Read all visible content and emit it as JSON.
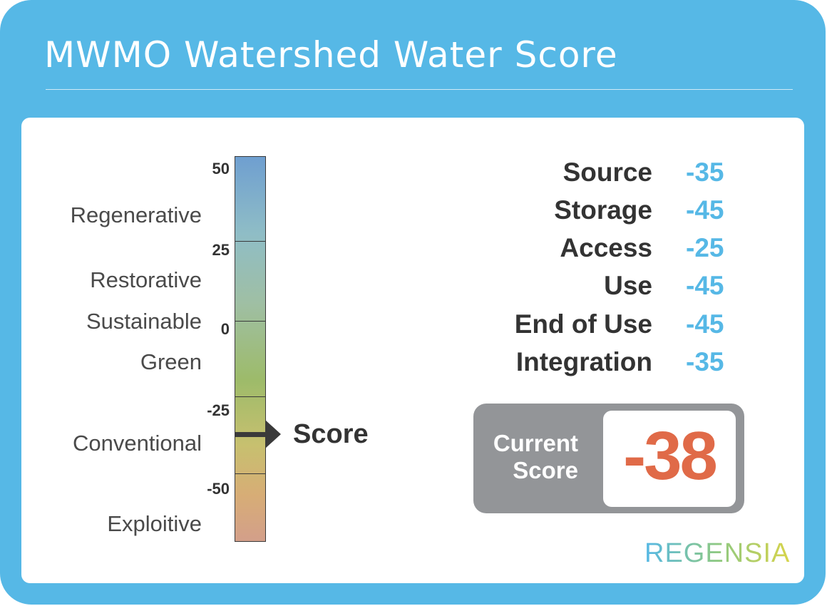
{
  "header": {
    "title": "MWMO Watershed Water Score"
  },
  "scale": {
    "ticks": [
      "50",
      "25",
      "0",
      "-25",
      "-50"
    ],
    "levels": [
      "Regenerative",
      "Restorative",
      "Sustainable",
      "Green",
      "Conventional",
      "Exploitive"
    ],
    "marker_label": "Score",
    "marker_value": -38,
    "range": [
      -72,
      55
    ]
  },
  "metrics": [
    {
      "name": "Source",
      "value": "-35"
    },
    {
      "name": "Storage",
      "value": "-45"
    },
    {
      "name": "Access",
      "value": "-25"
    },
    {
      "name": "Use",
      "value": "-45"
    },
    {
      "name": "End of Use",
      "value": "-45"
    },
    {
      "name": "Integration",
      "value": "-35"
    }
  ],
  "current_score": {
    "caption_line1": "Current",
    "caption_line2": "Score",
    "value": "-38"
  },
  "brand": {
    "logo": "REGENSIA"
  },
  "colors": {
    "frame": "#56b8e6",
    "metric_value": "#56b8e6",
    "score_value": "#e06a48",
    "score_box": "#939598"
  }
}
